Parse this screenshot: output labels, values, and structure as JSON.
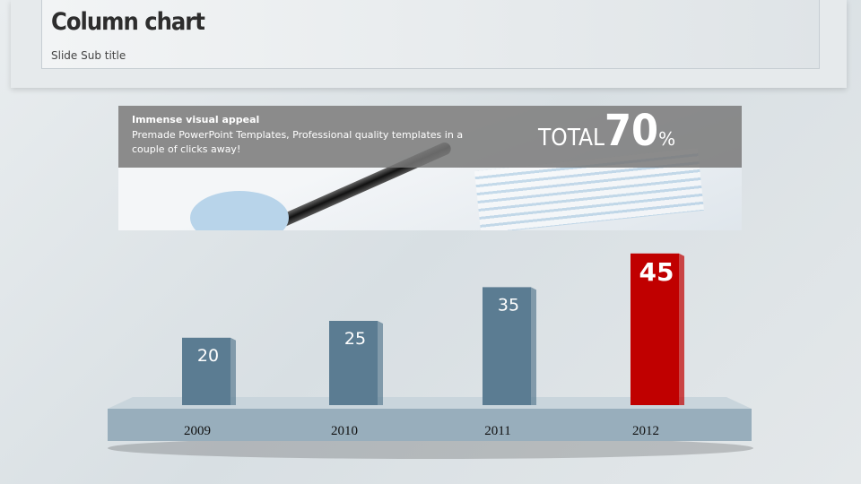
{
  "header": {
    "title": "Column chart",
    "subtitle": "Slide Sub title"
  },
  "banner": {
    "heading": "Immense visual appeal",
    "text": "Premade PowerPoint Templates, Professional quality templates in a couple of clicks away!",
    "total_label": "TOTAL",
    "total_value": 70,
    "total_unit": "%"
  },
  "chart_data": {
    "type": "bar",
    "categories": [
      "2009",
      "2010",
      "2011",
      "2012"
    ],
    "values": [
      20,
      25,
      35,
      45
    ],
    "colors": [
      "#5b7c92",
      "#5b7c92",
      "#5b7c92",
      "#c00000"
    ]
  }
}
